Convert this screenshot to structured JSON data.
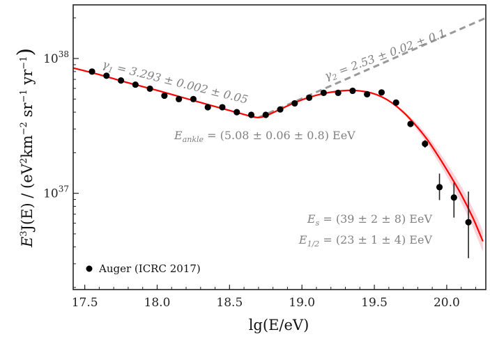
{
  "chart_data": {
    "type": "scatter",
    "xlabel": "lg(E/eV)",
    "ylabel": "E³J(E) / (eV² km⁻² sr⁻¹ yr⁻¹)",
    "ylabel_parts": {
      "main": "E",
      "main_sup": "3",
      "func": "J(E) / (eV",
      "eV_sup": "2",
      "km": "km",
      "km_sup": "−2",
      "sr": "sr",
      "sr_sup": "−1",
      "yr": "yr",
      "yr_sup": "−1",
      "close": ")"
    },
    "xlim": [
      17.42,
      20.27
    ],
    "ylim": [
      1.93e+36,
      2.5e+38
    ],
    "yscale": "log",
    "x_ticks": [
      "17.5",
      "18.0",
      "18.5",
      "19.0",
      "19.5",
      "20.0"
    ],
    "y_ticks": [
      {
        "base": "10",
        "exp": "37",
        "value": 1e+37
      },
      {
        "base": "10",
        "exp": "38",
        "value": 1e+38
      }
    ],
    "legend": {
      "label": "Auger (ICRC 2017)",
      "placement": "bottom-left"
    },
    "series": [
      {
        "name": "Auger (ICRC 2017)",
        "color": "#000000",
        "x": [
          17.55,
          17.65,
          17.75,
          17.85,
          17.95,
          18.05,
          18.15,
          18.25,
          18.35,
          18.45,
          18.55,
          18.65,
          18.75,
          18.85,
          18.95,
          19.05,
          19.15,
          19.25,
          19.35,
          19.45,
          19.55,
          19.65,
          19.75,
          19.85,
          19.95,
          20.05,
          20.15
        ],
        "y": [
          8e+37,
          7.45e+37,
          6.87e+37,
          6.4e+37,
          5.97e+37,
          5.3e+37,
          5e+37,
          5e+37,
          4.35e+37,
          4.35e+37,
          4e+37,
          3.82e+37,
          3.82e+37,
          4.19e+37,
          4.65e+37,
          5.12e+37,
          5.56e+37,
          5.56e+37,
          5.76e+37,
          5.43e+37,
          5.6e+37,
          4.71e+37,
          3.27e+37,
          2.33e+37,
          1.11e+37,
          9.3e+36,
          6.1e+36
        ],
        "y_err_low": [
          0,
          0,
          0,
          0,
          0,
          0,
          0,
          0,
          0,
          0,
          0,
          0,
          0,
          0,
          0,
          0,
          0,
          0,
          0,
          0,
          0,
          0,
          1.5e+36,
          1.5e+36,
          2.2e+36,
          2.7e+36,
          2.8e+36
        ],
        "y_err_high": [
          0,
          0,
          0,
          0,
          0,
          0,
          0,
          0,
          0,
          0,
          0,
          0,
          0,
          0,
          0,
          0,
          0,
          0,
          0,
          0,
          0,
          0,
          1.5e+36,
          1.5e+36,
          2.9e+36,
          2.7e+36,
          4.2e+36
        ]
      }
    ],
    "fit": {
      "color": "#ff0000",
      "band_color": "#f7b6c0",
      "x": [
        17.42,
        17.6,
        17.8,
        18.0,
        18.2,
        18.4,
        18.55,
        18.65,
        18.7,
        18.75,
        18.85,
        18.95,
        19.05,
        19.15,
        19.25,
        19.32,
        19.4,
        19.48,
        19.55,
        19.62,
        19.7,
        19.78,
        19.86,
        19.94,
        20.02,
        20.1,
        20.18,
        20.25
      ],
      "y": [
        8.5e+37,
        7.6e+37,
        6.6e+37,
        5.8e+37,
        5.05e+37,
        4.4e+37,
        3.98e+37,
        3.72e+37,
        3.65e+37,
        3.75e+37,
        4.2e+37,
        4.7e+37,
        5.15e+37,
        5.5e+37,
        5.72e+37,
        5.8e+37,
        5.75e+37,
        5.55e+37,
        5.2e+37,
        4.7e+37,
        4e+37,
        3.25e+37,
        2.55e+37,
        1.9e+37,
        1.38e+37,
        9.8e+36,
        6.6e+36,
        4.4e+36
      ]
    },
    "extrapolation": {
      "color": "#999999",
      "style": "dashed",
      "x": [
        18.7,
        20.27
      ],
      "y": [
        3.65e+37,
        2e+38
      ]
    },
    "annotations": {
      "gamma1": {
        "symbol": "γ",
        "sub": "1",
        "text": " = 3.293 ± 0.002 ± 0.05"
      },
      "gamma2": {
        "symbol": "γ",
        "sub": "2",
        "text": " = 2.53 ± 0.02 ± 0.1"
      },
      "ankle": {
        "symbol": "E",
        "sub": "ankle",
        "text": " = (5.08 ± 0.06 ± 0.8) EeV"
      },
      "es": {
        "symbol": "E",
        "sub": "s",
        "text": " = (39 ± 2 ± 8) EeV"
      },
      "ehalf": {
        "symbol": "E",
        "sub": "1/2",
        "text": " = (23 ± 1 ± 4) EeV"
      }
    }
  }
}
